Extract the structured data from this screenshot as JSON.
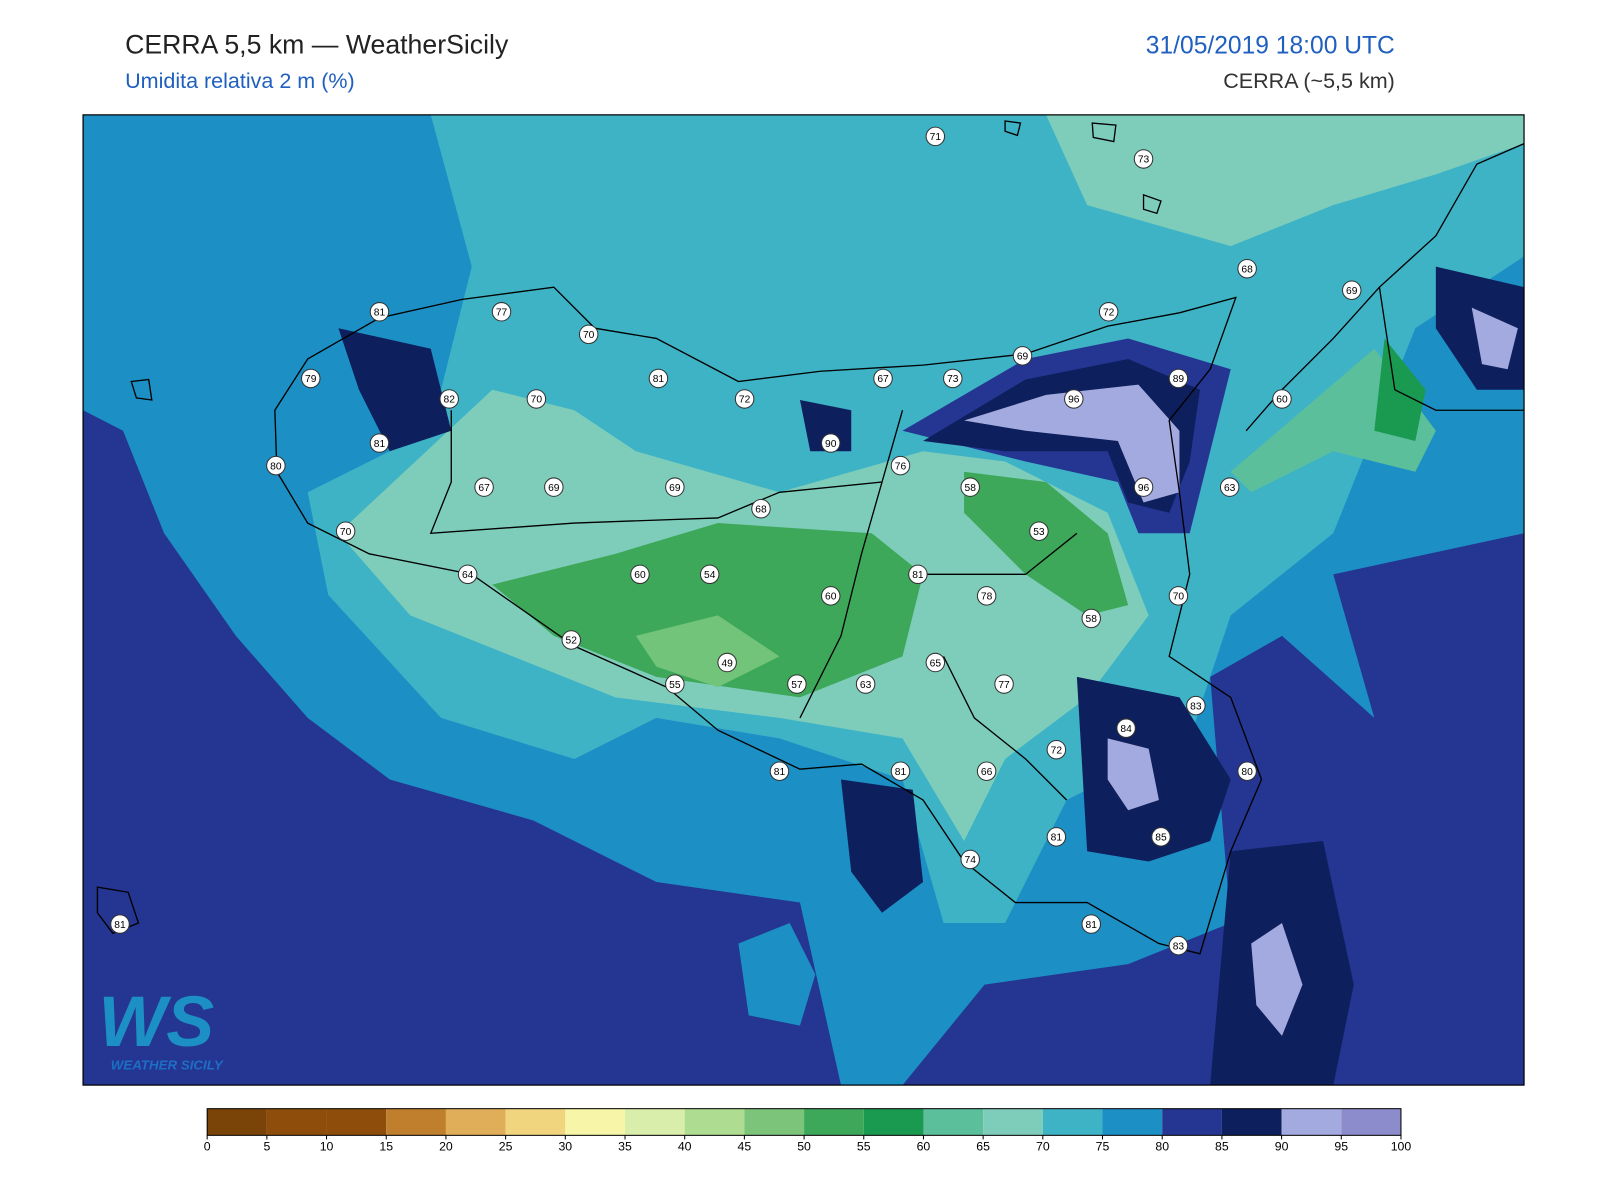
{
  "header": {
    "title": "CERRA 5,5 km — WeatherSicily",
    "subtitle": "Umidita relativa 2 m (%)",
    "datetime": "31/05/2019 18:00 UTC",
    "source": "CERRA (~5,5 km)"
  },
  "stations": [
    71,
    73,
    68,
    69,
    81,
    77,
    70,
    72,
    69,
    79,
    82,
    70,
    81,
    72,
    67,
    73,
    96,
    89,
    60,
    81,
    80,
    90,
    76,
    67,
    69,
    69,
    68,
    58,
    96,
    63,
    70,
    53,
    64,
    60,
    54,
    81,
    60,
    78,
    70,
    58,
    52,
    49,
    65,
    55,
    57,
    63,
    77,
    83,
    84,
    72,
    81,
    81,
    66,
    80,
    81,
    85,
    74,
    81,
    81,
    83
  ],
  "colorbar": {
    "ticks": [
      0,
      5,
      10,
      15,
      20,
      25,
      30,
      35,
      40,
      45,
      50,
      55,
      60,
      65,
      70,
      75,
      80,
      85,
      90,
      95,
      100
    ],
    "colors": [
      "#7a4308",
      "#8f4d0b",
      "#8f4d0b",
      "#c07f2c",
      "#e0ad58",
      "#f1d57e",
      "#f6f5a8",
      "#d8eeaa",
      "#aedc90",
      "#7cc47a",
      "#3ea85a",
      "#1a9a50",
      "#5cbf9c",
      "#7ecdbb",
      "#3eb3c6",
      "#1c8fc4",
      "#243592",
      "#0d1f5c",
      "#a3aadf",
      "#8c8ccc"
    ]
  },
  "logo": {
    "mark": "WS",
    "name": "WEATHER SICILY"
  }
}
